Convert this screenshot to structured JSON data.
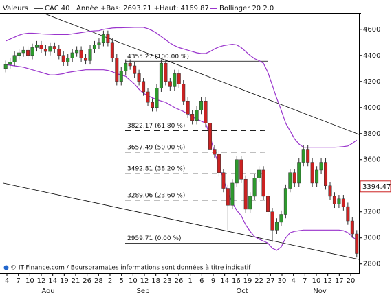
{
  "chart_data": {
    "type": "candlestick",
    "legend_label": "Valeurs",
    "series_name": "CAC 40",
    "year_range": "Année +Bas: 2693.21 +Haut: 4169.87",
    "indicator_name": "Bollinger 20 2.0",
    "indicator_color": "#9933cc",
    "up_color": "#2e9a2e",
    "down_color": "#cc2222",
    "footer": "© IT-Finance.com / BoursoramaLes informations sont données à titre indicatif",
    "x_labels": [
      "4",
      "7",
      "10",
      "12",
      "14",
      "19",
      "21",
      "26",
      "28",
      "2",
      "5",
      "10",
      "12",
      "18",
      "23",
      "26",
      "1",
      "6",
      "9",
      "14",
      "16",
      "19",
      "22",
      "27",
      "30",
      "4",
      "7",
      "10",
      "12",
      "17",
      "20"
    ],
    "months": [
      "Aou",
      "Sep",
      "Oct",
      "Nov"
    ],
    "ylim": [
      2730,
      4720
    ],
    "yticks": [
      2800,
      3000,
      3200,
      3400,
      3600,
      3800,
      4000,
      4200,
      4400,
      4600
    ],
    "last": 3394.47,
    "open": [
      4300,
      4330,
      4350,
      4400,
      4420,
      4440,
      4400,
      4460,
      4480,
      4450,
      4430,
      4470,
      4450,
      4400,
      4350,
      4380,
      4420,
      4440,
      4380,
      4360,
      4450,
      4480,
      4500,
      4560,
      4500,
      4380,
      4200,
      4280,
      4340,
      4320,
      4260,
      4200,
      4120,
      4040,
      4000,
      4150,
      4340,
      4200,
      4160,
      4260,
      4180,
      4050,
      3950,
      3900,
      3980,
      4050,
      3880,
      3680,
      3640,
      3500,
      3380,
      3250,
      3420,
      3600,
      3450,
      3220,
      3320,
      3460,
      3520,
      3320,
      3200,
      3060,
      3120,
      3180,
      3380,
      3500,
      3420,
      3580,
      3680,
      3580,
      3420,
      3520,
      3580,
      3400,
      3320,
      3260,
      3300,
      3240,
      3130,
      3030
    ],
    "high": [
      4360,
      4380,
      4430,
      4450,
      4470,
      4470,
      4490,
      4510,
      4510,
      4480,
      4500,
      4500,
      4480,
      4430,
      4410,
      4450,
      4470,
      4470,
      4410,
      4480,
      4510,
      4530,
      4590,
      4590,
      4530,
      4410,
      4310,
      4370,
      4370,
      4350,
      4290,
      4230,
      4150,
      4070,
      4180,
      4370,
      4370,
      4230,
      4290,
      4290,
      4210,
      4080,
      3980,
      4010,
      4080,
      4080,
      3910,
      3710,
      3670,
      3530,
      3410,
      3450,
      3630,
      3630,
      3480,
      3350,
      3490,
      3550,
      3550,
      3350,
      3230,
      3150,
      3210,
      3410,
      3530,
      3530,
      3610,
      3710,
      3710,
      3610,
      3550,
      3610,
      3610,
      3430,
      3350,
      3330,
      3330,
      3270,
      3160,
      3060
    ],
    "low": [
      4270,
      4300,
      4320,
      4370,
      4390,
      4370,
      4370,
      4430,
      4420,
      4400,
      4400,
      4420,
      4370,
      4320,
      4320,
      4350,
      4390,
      4350,
      4330,
      4330,
      4420,
      4450,
      4470,
      4470,
      4350,
      4170,
      4170,
      4250,
      4290,
      4230,
      4170,
      4090,
      4010,
      3970,
      3970,
      4120,
      4170,
      4130,
      4130,
      4150,
      4020,
      3920,
      3870,
      3870,
      3950,
      3850,
      3650,
      3610,
      3470,
      3350,
      3060,
      3220,
      3390,
      3420,
      3190,
      3190,
      3290,
      3430,
      3290,
      3170,
      2970,
      3030,
      3090,
      3150,
      3350,
      3390,
      3390,
      3550,
      3550,
      3390,
      3390,
      3490,
      3370,
      3290,
      3230,
      3230,
      3210,
      3100,
      3000,
      2850
    ],
    "close": [
      4330,
      4350,
      4400,
      4420,
      4440,
      4400,
      4460,
      4480,
      4450,
      4430,
      4470,
      4450,
      4400,
      4350,
      4380,
      4420,
      4440,
      4380,
      4360,
      4450,
      4480,
      4500,
      4560,
      4500,
      4380,
      4200,
      4280,
      4340,
      4320,
      4260,
      4200,
      4120,
      4040,
      4000,
      4150,
      4340,
      4200,
      4160,
      4260,
      4180,
      4050,
      3950,
      3900,
      3980,
      4050,
      3880,
      3680,
      3640,
      3500,
      3380,
      3250,
      3420,
      3600,
      3450,
      3220,
      3320,
      3460,
      3520,
      3320,
      3200,
      3060,
      3120,
      3180,
      3380,
      3500,
      3420,
      3580,
      3680,
      3580,
      3420,
      3520,
      3580,
      3400,
      3320,
      3260,
      3300,
      3240,
      3130,
      3030,
      2880
    ],
    "boll_upper": [
      4510,
      4525,
      4540,
      4555,
      4565,
      4570,
      4570,
      4568,
      4565,
      4563,
      4562,
      4560,
      4560,
      4560,
      4560,
      4565,
      4570,
      4575,
      4580,
      4585,
      4588,
      4590,
      4600,
      4605,
      4610,
      4612,
      4612,
      4613,
      4614,
      4615,
      4615,
      4615,
      4605,
      4590,
      4570,
      4545,
      4520,
      4495,
      4475,
      4460,
      4450,
      4440,
      4430,
      4420,
      4415,
      4415,
      4430,
      4450,
      4465,
      4475,
      4480,
      4485,
      4480,
      4460,
      4430,
      4400,
      4375,
      4360,
      4340,
      4270,
      4170,
      4070,
      3980,
      3880,
      3820,
      3760,
      3720,
      3695,
      3695,
      3695,
      3695,
      3695,
      3695,
      3695,
      3695,
      3697,
      3700,
      3705,
      3725,
      3750
    ],
    "boll_lower": [
      4330,
      4325,
      4320,
      4315,
      4310,
      4300,
      4290,
      4280,
      4270,
      4260,
      4250,
      4250,
      4255,
      4260,
      4270,
      4275,
      4280,
      4285,
      4290,
      4290,
      4290,
      4290,
      4290,
      4285,
      4275,
      4260,
      4250,
      4240,
      4210,
      4180,
      4140,
      4110,
      4090,
      4075,
      4060,
      4050,
      4040,
      4020,
      4000,
      3985,
      3970,
      3950,
      3930,
      3910,
      3895,
      3880,
      3780,
      3650,
      3560,
      3450,
      3350,
      3270,
      3210,
      3170,
      3100,
      3050,
      3010,
      2990,
      2975,
      2960,
      2920,
      2905,
      2930,
      3000,
      3040,
      3050,
      3055,
      3060,
      3060,
      3060,
      3060,
      3060,
      3060,
      3060,
      3060,
      3060,
      3055,
      3040,
      3010,
      2980
    ],
    "fib_levels": [
      {
        "value": 4355.27,
        "label": "4355.27 (100.00 %)"
      },
      {
        "value": 3822.17,
        "label": "3822.17 (61.80 %)"
      },
      {
        "value": 3657.49,
        "label": "3657.49 (50.00 %)"
      },
      {
        "value": 3492.81,
        "label": "3492.81 (38.20 %)"
      },
      {
        "value": 3289.06,
        "label": "3289.06 (23.60 %)"
      },
      {
        "value": 2959.71,
        "label": "2959.71 (0.00 %)"
      }
    ]
  }
}
